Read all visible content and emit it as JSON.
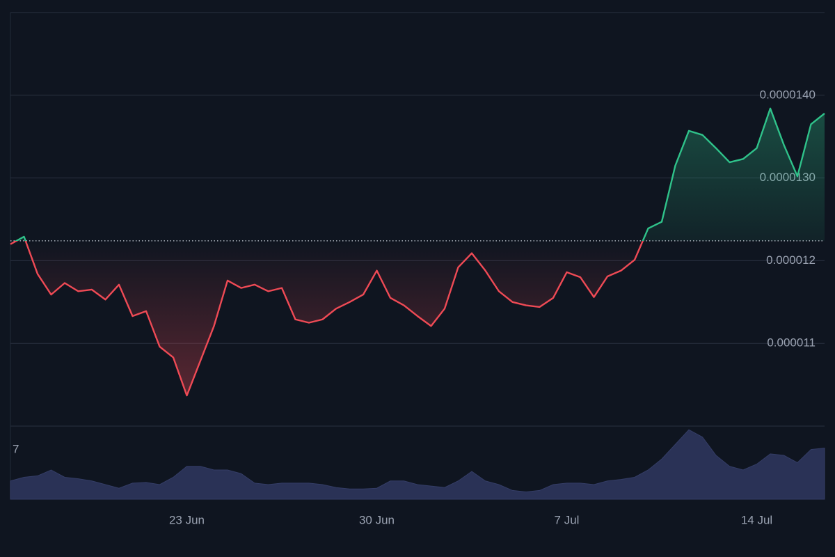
{
  "chart_data": {
    "type": "line",
    "categories": [
      null,
      null,
      null,
      null,
      null,
      null,
      null,
      null,
      null,
      null,
      null,
      null,
      null,
      "23 Jun",
      null,
      null,
      null,
      null,
      null,
      null,
      null,
      null,
      null,
      null,
      null,
      null,
      null,
      "30 Jun",
      null,
      null,
      null,
      null,
      null,
      null,
      null,
      null,
      null,
      null,
      null,
      null,
      null,
      "7 Jul",
      null,
      null,
      null,
      null,
      null,
      null,
      null,
      null,
      null,
      null,
      null,
      null,
      null,
      "14 Jul",
      null,
      null,
      null,
      null,
      null
    ],
    "series": [
      {
        "values": [
          1.22e-05,
          1.229e-05,
          1.184e-05,
          1.159e-05,
          1.173e-05,
          1.163e-05,
          1.165e-05,
          1.153e-05,
          1.171e-05,
          1.133e-05,
          1.139e-05,
          1.096e-05,
          1.083e-05,
          1.037e-05,
          1.079e-05,
          1.121e-05,
          1.176e-05,
          1.167e-05,
          1.171e-05,
          1.163e-05,
          1.167e-05,
          1.129e-05,
          1.125e-05,
          1.129e-05,
          1.142e-05,
          1.15e-05,
          1.159e-05,
          1.188e-05,
          1.155e-05,
          1.146e-05,
          1.133e-05,
          1.121e-05,
          1.142e-05,
          1.192e-05,
          1.209e-05,
          1.188e-05,
          1.163e-05,
          1.15e-05,
          1.146e-05,
          1.144e-05,
          1.155e-05,
          1.186e-05,
          1.18e-05,
          1.156e-05,
          1.181e-05,
          1.188e-05,
          1.201e-05,
          1.239e-05,
          1.247e-05,
          1.315e-05,
          1.357e-05,
          1.352e-05,
          1.336e-05,
          1.319e-05,
          1.323e-05,
          1.336e-05,
          1.384e-05,
          1.34e-05,
          1.302e-05,
          1.365e-05,
          1.378e-05
        ],
        "up_color": "#2fc28a",
        "down_color": "#ef4a55"
      }
    ],
    "baseline": 1.224e-05,
    "ylim": [
      1e-05,
      1.5e-05
    ],
    "yticks": [
      {
        "value": 1.1e-05,
        "label": "0.000011"
      },
      {
        "value": 1.2e-05,
        "label": "0.000012"
      },
      {
        "value": 1.3e-05,
        "label": "0.0000130"
      },
      {
        "value": 1.4e-05,
        "label": "0.0000140"
      }
    ],
    "grid": true,
    "volume": {
      "label": "7",
      "color": "#2a3256",
      "ylim": [
        0,
        100
      ],
      "values": [
        25,
        30,
        32,
        40,
        30,
        28,
        25,
        20,
        15,
        22,
        23,
        20,
        30,
        45,
        45,
        40,
        40,
        35,
        22,
        20,
        22,
        22,
        22,
        20,
        16,
        14,
        14,
        15,
        25,
        25,
        20,
        18,
        16,
        25,
        38,
        25,
        20,
        12,
        10,
        12,
        20,
        22,
        22,
        20,
        25,
        27,
        30,
        40,
        55,
        75,
        95,
        85,
        60,
        45,
        40,
        48,
        62,
        60,
        50,
        68,
        70
      ]
    }
  }
}
